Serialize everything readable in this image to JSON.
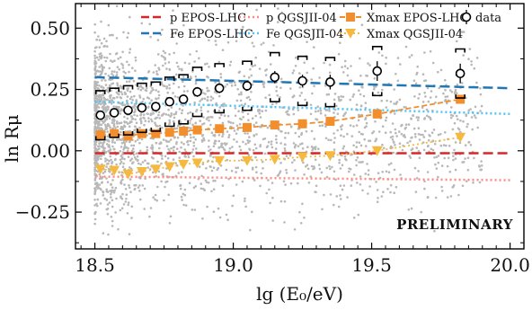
{
  "chart_data": {
    "type": "scatter",
    "xlabel": "lg (E₀/eV)",
    "ylabel": "ln Rμ",
    "xlim": [
      18.43,
      20.05
    ],
    "ylim": [
      -0.4,
      0.6
    ],
    "xticks": [
      18.5,
      19.0,
      19.5,
      20.0
    ],
    "xtick_labels": [
      "18.5",
      "19.0",
      "19.5",
      "20.0"
    ],
    "yticks": [
      -0.25,
      0.0,
      0.25,
      0.5
    ],
    "ytick_labels": [
      "−0.25",
      "0.00",
      "0.25",
      "0.50"
    ],
    "annotation": "PRELIMINARY",
    "legend_position": "top",
    "lines": [
      {
        "name": "p EPOS-LHC",
        "style": "dashed",
        "color": "#d62728",
        "x": [
          18.5,
          20.0
        ],
        "y": [
          -0.01,
          -0.01
        ]
      },
      {
        "name": "Fe EPOS-LHC",
        "style": "dashed",
        "color": "#1f77b4",
        "x": [
          18.5,
          20.0
        ],
        "y": [
          0.3,
          0.255
        ]
      },
      {
        "name": "p QGSJII-04",
        "style": "dotted",
        "color": "#ff8a80",
        "x": [
          18.5,
          20.0
        ],
        "y": [
          -0.105,
          -0.12
        ]
      },
      {
        "name": "Fe QGSJII-04",
        "style": "dotted",
        "color": "#4fc3f7",
        "x": [
          18.5,
          20.0
        ],
        "y": [
          0.2,
          0.15
        ]
      }
    ],
    "xmax_epos": {
      "name": "Xmax EPOS-LHC",
      "marker": "square",
      "color": "#f28e2b",
      "x": [
        18.52,
        18.57,
        18.62,
        18.67,
        18.72,
        18.77,
        18.82,
        18.87,
        18.95,
        19.05,
        19.15,
        19.25,
        19.35,
        19.52,
        19.82
      ],
      "y": [
        0.065,
        0.07,
        0.06,
        0.07,
        0.07,
        0.075,
        0.08,
        0.085,
        0.09,
        0.095,
        0.105,
        0.11,
        0.12,
        0.15,
        0.21
      ]
    },
    "xmax_qgsjet": {
      "name": "Xmax QGSJII-04",
      "marker": "triangle-down",
      "color": "#f5b940",
      "x": [
        18.52,
        18.57,
        18.62,
        18.67,
        18.72,
        18.77,
        18.82,
        18.87,
        18.95,
        19.05,
        19.15,
        19.25,
        19.35,
        19.52,
        19.82
      ],
      "y": [
        -0.075,
        -0.08,
        -0.095,
        -0.085,
        -0.075,
        -0.065,
        -0.055,
        -0.05,
        -0.04,
        -0.04,
        -0.035,
        -0.025,
        -0.02,
        0.0,
        0.055
      ]
    },
    "data": {
      "name": "data",
      "marker": "open-circle",
      "color": "#000000",
      "x": [
        18.52,
        18.57,
        18.62,
        18.67,
        18.72,
        18.77,
        18.82,
        18.87,
        18.95,
        19.05,
        19.15,
        19.25,
        19.35,
        19.52,
        19.82
      ],
      "y": [
        0.145,
        0.155,
        0.165,
        0.175,
        0.18,
        0.2,
        0.21,
        0.24,
        0.255,
        0.265,
        0.3,
        0.285,
        0.28,
        0.325,
        0.315
      ],
      "stat_err": [
        0.015,
        0.015,
        0.015,
        0.015,
        0.015,
        0.015,
        0.015,
        0.02,
        0.02,
        0.02,
        0.025,
        0.025,
        0.03,
        0.04,
        0.04
      ],
      "sys_err": [
        0.1,
        0.1,
        0.1,
        0.1,
        0.1,
        0.1,
        0.1,
        0.1,
        0.1,
        0.1,
        0.1,
        0.1,
        0.1,
        0.1,
        0.1
      ]
    },
    "background_scatter": {
      "color": "#b8b8b8",
      "x_range": [
        18.5,
        19.9
      ],
      "y_range": [
        -0.4,
        0.6
      ]
    }
  },
  "legend": {
    "p_epos": "p EPOS-LHC",
    "fe_epos": "Fe EPOS-LHC",
    "p_qgs": "p QGSJII-04",
    "fe_qgs": "Fe QGSJII-04",
    "xmax_epos": "Xmax EPOS-LHC",
    "xmax_qgs": "Xmax QGSJII-04",
    "data": "data"
  }
}
